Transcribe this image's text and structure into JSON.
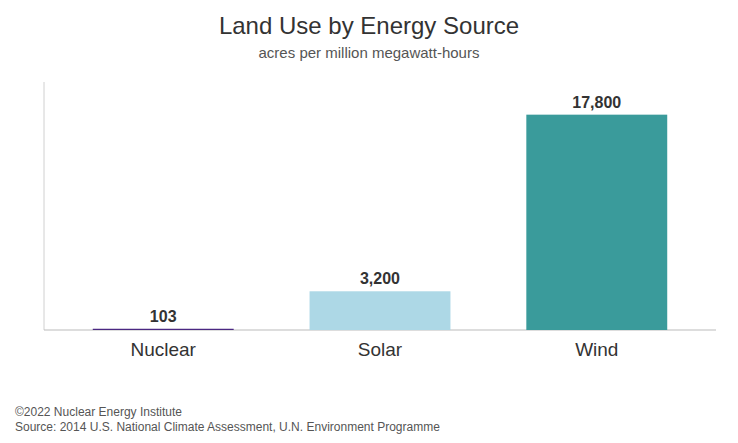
{
  "chart_data": {
    "type": "bar",
    "title": "Land Use by Energy Source",
    "subtitle": "acres per million megawatt-hours",
    "categories": [
      "Nuclear",
      "Solar",
      "Wind"
    ],
    "values": [
      103,
      3200,
      17800
    ],
    "value_labels": [
      "103",
      "3,200",
      "17,800"
    ],
    "colors": [
      "#4B2882",
      "#ADD8E6",
      "#3A9B9B"
    ],
    "ylim": [
      0,
      20500
    ],
    "data_labels": true,
    "tick_labels": "x",
    "grid": false,
    "annotations": [
      "©2022 Nuclear Energy Institute",
      "Source: 2014 U.S. National Climate Assessment, U.N. Environment Programme"
    ]
  }
}
